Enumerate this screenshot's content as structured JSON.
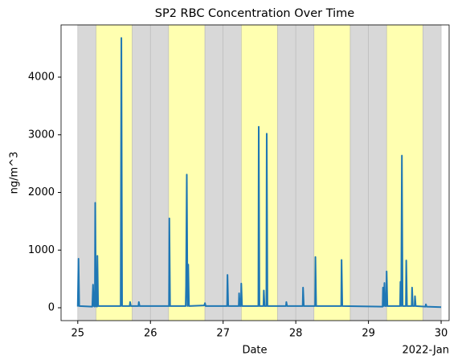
{
  "chart_data": {
    "type": "line",
    "title": "SP2 RBC Concentration Over Time",
    "x_label": "Date",
    "y_label": "ng/m^3",
    "x_offset_label": "2022-Jan",
    "color": "#1f77b4",
    "x": [
      25.0,
      25.01,
      25.02,
      25.2,
      25.21,
      25.22,
      25.235,
      25.24,
      25.25,
      25.265,
      25.27,
      25.28,
      25.59,
      25.6,
      25.61,
      25.715,
      25.72,
      25.73,
      25.835,
      25.84,
      25.85,
      26.255,
      26.26,
      26.27,
      26.485,
      26.49,
      26.5,
      26.51,
      26.52,
      26.53,
      26.74,
      26.75,
      26.76,
      27.055,
      27.06,
      27.07,
      27.215,
      27.22,
      27.23,
      27.245,
      27.25,
      27.26,
      27.485,
      27.49,
      27.5,
      27.555,
      27.56,
      27.57,
      27.595,
      27.6,
      27.61,
      27.865,
      27.87,
      27.88,
      28.095,
      28.1,
      28.11,
      28.265,
      28.27,
      28.28,
      28.625,
      28.63,
      28.64,
      29.195,
      29.2,
      29.21,
      29.22,
      29.23,
      29.245,
      29.25,
      29.26,
      29.435,
      29.44,
      29.45,
      29.46,
      29.47,
      29.515,
      29.52,
      29.53,
      29.595,
      29.6,
      29.61,
      29.635,
      29.64,
      29.65,
      29.785,
      29.79,
      29.8,
      30.0
    ],
    "values": [
      20,
      850,
      30,
      20,
      400,
      30,
      20,
      1820,
      30,
      20,
      900,
      30,
      30,
      4680,
      30,
      30,
      100,
      30,
      30,
      100,
      30,
      30,
      1550,
      30,
      30,
      380,
      2310,
      30,
      750,
      30,
      40,
      80,
      30,
      30,
      570,
      30,
      30,
      250,
      30,
      30,
      420,
      30,
      30,
      3140,
      30,
      30,
      300,
      30,
      30,
      3020,
      30,
      30,
      100,
      30,
      30,
      350,
      30,
      30,
      880,
      30,
      30,
      830,
      30,
      20,
      350,
      30,
      430,
      30,
      30,
      630,
      30,
      30,
      450,
      30,
      2640,
      30,
      30,
      820,
      30,
      30,
      350,
      30,
      30,
      200,
      30,
      20,
      60,
      20,
      10
    ],
    "spans": [
      {
        "start": 25.0,
        "end": 25.25,
        "color": "#d8d8d8"
      },
      {
        "start": 25.25,
        "end": 25.75,
        "color": "#ffffb0"
      },
      {
        "start": 25.75,
        "end": 26.0,
        "color": "#d8d8d8"
      },
      {
        "start": 26.0,
        "end": 26.25,
        "color": "#d8d8d8"
      },
      {
        "start": 26.25,
        "end": 26.75,
        "color": "#ffffb0"
      },
      {
        "start": 26.75,
        "end": 27.0,
        "color": "#d8d8d8"
      },
      {
        "start": 27.0,
        "end": 27.25,
        "color": "#d8d8d8"
      },
      {
        "start": 27.25,
        "end": 27.75,
        "color": "#ffffb0"
      },
      {
        "start": 27.75,
        "end": 28.0,
        "color": "#d8d8d8"
      },
      {
        "start": 28.0,
        "end": 28.25,
        "color": "#d8d8d8"
      },
      {
        "start": 28.25,
        "end": 28.75,
        "color": "#ffffb0"
      },
      {
        "start": 28.75,
        "end": 29.0,
        "color": "#d8d8d8"
      },
      {
        "start": 29.0,
        "end": 29.25,
        "color": "#d8d8d8"
      },
      {
        "start": 29.25,
        "end": 29.75,
        "color": "#ffffb0"
      },
      {
        "start": 29.75,
        "end": 30.0,
        "color": "#d8d8d8"
      }
    ],
    "xlim": [
      24.77,
      30.11
    ],
    "xticks": [
      25,
      26,
      27,
      28,
      29,
      30
    ],
    "ylim": [
      -223,
      4906
    ],
    "yticks": [
      0,
      1000,
      2000,
      3000,
      4000
    ]
  }
}
